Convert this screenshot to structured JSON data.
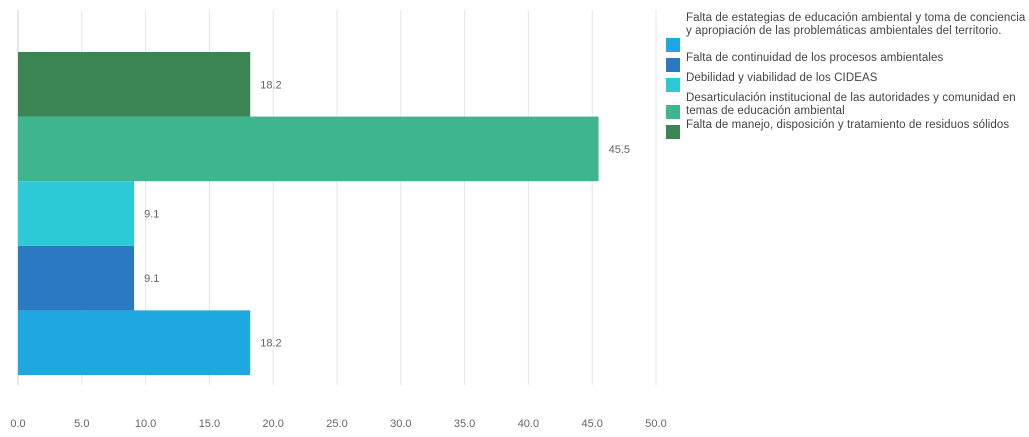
{
  "chart_data": {
    "type": "bar",
    "orientation": "horizontal",
    "xlim": [
      0,
      50
    ],
    "x_ticks": [
      "0.0",
      "5.0",
      "10.0",
      "15.0",
      "20.0",
      "25.0",
      "30.0",
      "35.0",
      "40.0",
      "45.0",
      "50.0"
    ],
    "grid": true,
    "legend_position": "right",
    "series": [
      {
        "name": "Falta de estategias de educación ambiental y toma de conciencia y apropiación de las problemáticas ambientales del territorio.",
        "value": 18.2,
        "label": "18.2",
        "color": "#1ea7e1"
      },
      {
        "name": "Falta de continuidad de los procesos ambientales",
        "value": 9.1,
        "label": "9.1",
        "color": "#2b79c2"
      },
      {
        "name": "Debilidad y viabilidad de los CIDEAS",
        "value": 9.1,
        "label": "9.1",
        "color": "#2bcad6"
      },
      {
        "name": "Desarticulación institucional de las autoridades y comunidad en temas de educación ambiental",
        "value": 45.5,
        "label": "45.5",
        "color": "#3eb48f"
      },
      {
        "name": "Falta de manejo, disposición y tratamiento de residuos sólidos",
        "value": 18.2,
        "label": "18.2",
        "color": "#3a8552"
      }
    ]
  }
}
